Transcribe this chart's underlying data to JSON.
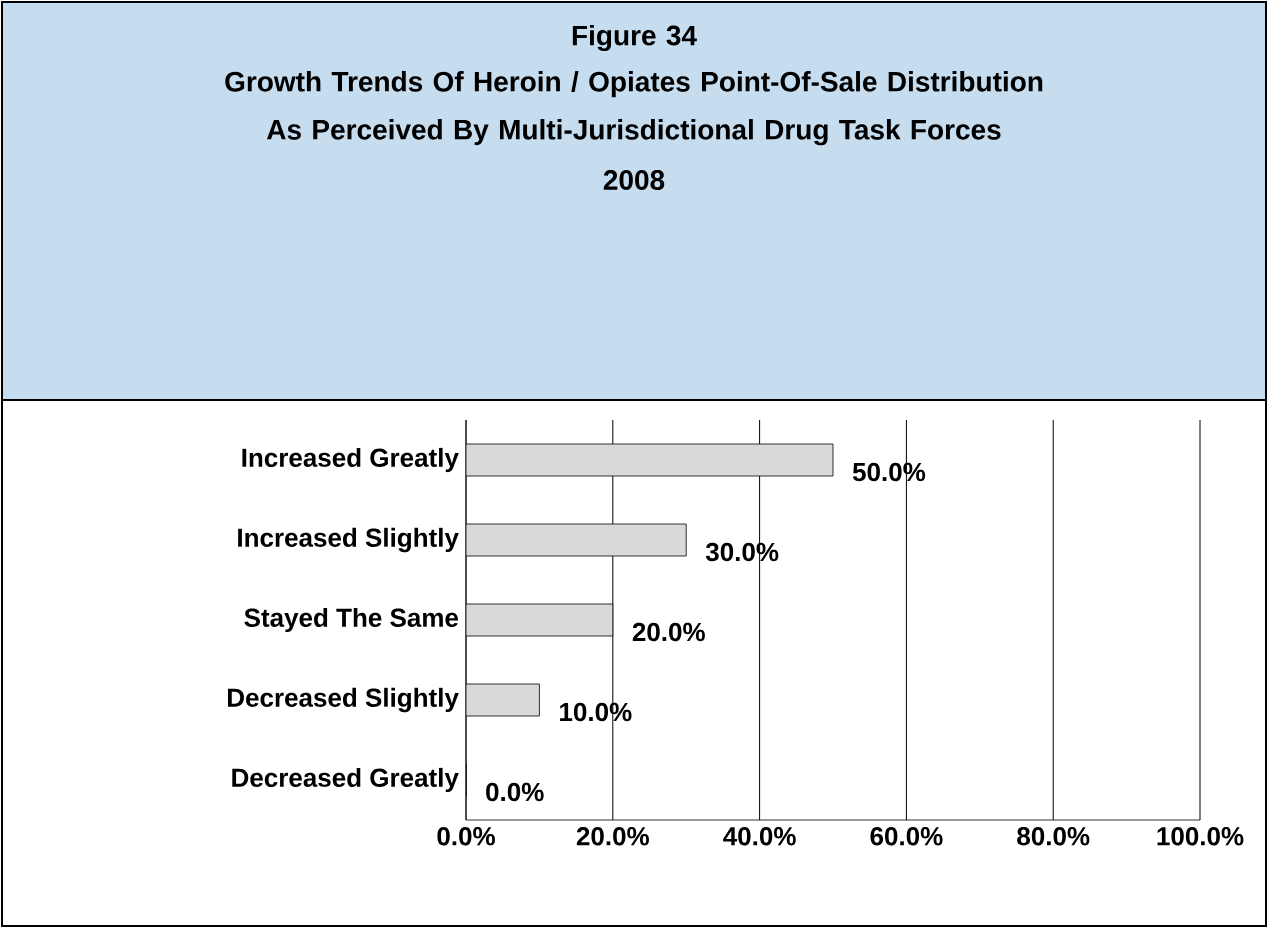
{
  "chart_data": {
    "type": "bar",
    "orientation": "horizontal",
    "title": "Figure 34",
    "subtitle": "Growth Trends Of Heroin / Opiates Point-Of-Sale Distribution As Perceived By Multi-Jurisdictional Drug Task Forces",
    "annotations": [
      "2008"
    ],
    "categories": [
      "Increased Greatly",
      "Increased Slightly",
      "Stayed The Same",
      "Decreased Slightly",
      "Decreased Greatly"
    ],
    "values": [
      50,
      30,
      20,
      10,
      0
    ],
    "value_labels": [
      "50.0%",
      "30.0%",
      "20.0%",
      "10.0%",
      "0.0%"
    ],
    "color": "#d9d9d9",
    "xlim": [
      0,
      100
    ],
    "xticks": [
      {
        "value": 0,
        "label": "0.0%"
      },
      {
        "value": 20,
        "label": "20.0%"
      },
      {
        "value": 40,
        "label": "40.0%"
      },
      {
        "value": 60,
        "label": "60.0%"
      },
      {
        "value": 80,
        "label": "80.0%"
      },
      {
        "value": 100,
        "label": "100.0%"
      }
    ],
    "grid": "x"
  }
}
